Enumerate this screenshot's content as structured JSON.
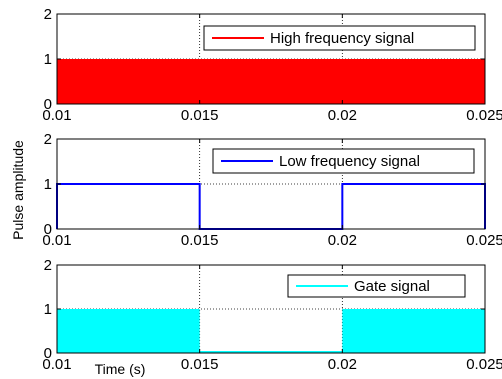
{
  "chart_data": [
    {
      "type": "line",
      "legend": "High frequency signal",
      "legend_position": "top-right",
      "color": "#ff0000",
      "signal": "dense-pwm",
      "xlim": [
        0.01,
        0.025
      ],
      "ylim": [
        0,
        2
      ],
      "x_ticks": [
        "0.01",
        "0.015",
        "0.02",
        "0.025"
      ],
      "y_ticks": [
        "0",
        "1",
        "2"
      ],
      "series": [
        {
          "name": "High frequency signal",
          "low": 0,
          "high": 1,
          "x_start": 0.01,
          "x_end": 0.025
        }
      ],
      "grid": true
    },
    {
      "type": "line",
      "legend": "Low frequency signal",
      "legend_position": "top-right",
      "color": "#0000ff",
      "signal": "square",
      "xlim": [
        0.01,
        0.025
      ],
      "ylim": [
        0,
        2
      ],
      "x_ticks": [
        "0.01",
        "0.015",
        "0.02",
        "0.025"
      ],
      "y_ticks": [
        "0",
        "1",
        "2"
      ],
      "series": [
        {
          "name": "Low frequency signal",
          "x": [
            0.01,
            0.01,
            0.015,
            0.015,
            0.02,
            0.02,
            0.025,
            0.025
          ],
          "y": [
            0,
            1,
            1,
            0,
            0,
            1,
            1,
            0
          ]
        }
      ],
      "grid": true
    },
    {
      "type": "area",
      "legend": "Gate signal",
      "legend_position": "top-right",
      "color": "#00ffff",
      "signal": "gated-pwm",
      "xlim": [
        0.01,
        0.025
      ],
      "ylim": [
        0,
        2
      ],
      "x_ticks": [
        "0.01",
        "0.015",
        "0.02",
        "0.025"
      ],
      "y_ticks": [
        "0",
        "1",
        "2"
      ],
      "series": [
        {
          "name": "Gate signal",
          "on_intervals": [
            [
              0.01,
              0.015
            ],
            [
              0.02,
              0.025
            ]
          ],
          "low": 0,
          "high": 1
        }
      ],
      "grid": true
    }
  ],
  "ylabel": "Pulse amplitude",
  "xlabel": "Time (s)"
}
